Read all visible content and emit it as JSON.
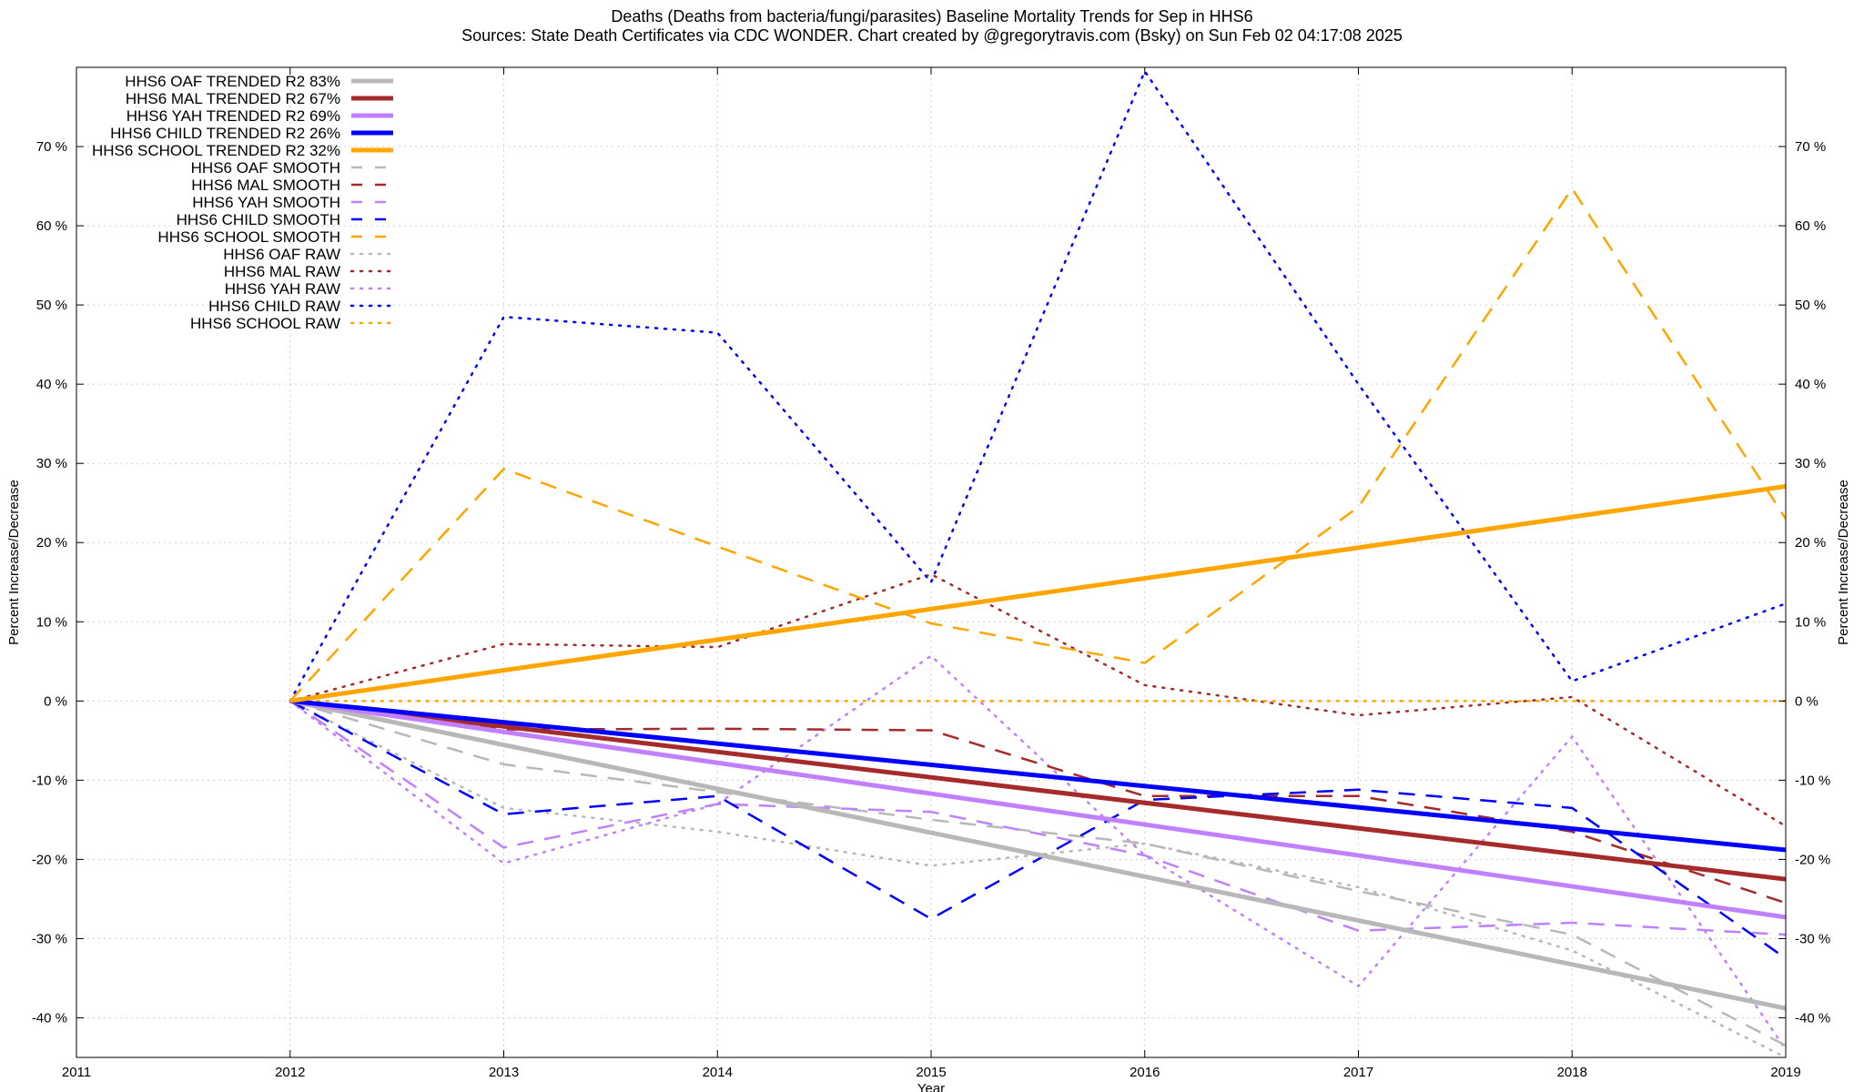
{
  "title_line1": "Deaths (Deaths from bacteria/fungi/parasites)  Baseline Mortality Trends for Sep in HHS6",
  "title_line2": "Sources: State Death Certificates via CDC WONDER.               Chart created by @gregorytravis.com (Bsky) on Sun Feb 02 04:17:08 2025",
  "chart_data": {
    "type": "line",
    "xlabel": "Year",
    "ylabel": "Percent Increase/Decrease",
    "y2label": "Percent Increase/Decrease",
    "xlim": [
      2011,
      2019
    ],
    "ylim": [
      -45,
      80
    ],
    "x_ticks": [
      2011,
      2012,
      2013,
      2014,
      2015,
      2016,
      2017,
      2018,
      2019
    ],
    "y_ticks": [
      -40,
      -30,
      -20,
      -10,
      0,
      10,
      20,
      30,
      40,
      50,
      60,
      70
    ],
    "y_tick_suffix": " %",
    "grid": true,
    "legend_position": "top-left",
    "series": [
      {
        "name": "HHS6 OAF TRENDED R2  83%",
        "style": "solid",
        "color": "#b8b8b8",
        "x": [
          2012,
          2019
        ],
        "values": [
          0,
          -38.8
        ]
      },
      {
        "name": "HHS6 MAL TRENDED R2  67%",
        "style": "solid",
        "color": "#a52a2a",
        "x": [
          2012,
          2019
        ],
        "values": [
          0,
          -22.5
        ]
      },
      {
        "name": "HHS6 YAH TRENDED R2  69%",
        "style": "solid",
        "color": "#c080ff",
        "x": [
          2012,
          2019
        ],
        "values": [
          0,
          -27.3
        ]
      },
      {
        "name": "HHS6 CHILD TRENDED R2  26%",
        "style": "solid",
        "color": "#0000ff",
        "x": [
          2012,
          2019
        ],
        "values": [
          0,
          -18.8
        ]
      },
      {
        "name": "HHS6 SCHOOL TRENDED R2  32%",
        "style": "solid",
        "color": "#ffa500",
        "x": [
          2012,
          2019
        ],
        "values": [
          0,
          27.1
        ]
      },
      {
        "name": "HHS6 OAF SMOOTH",
        "style": "dashed",
        "color": "#b8b8b8",
        "x": [
          2012,
          2013,
          2014,
          2015,
          2016,
          2017,
          2018,
          2019
        ],
        "values": [
          0,
          -8.0,
          -11.5,
          -15.0,
          -18.0,
          -24.0,
          -29.5,
          -43.5
        ]
      },
      {
        "name": "HHS6 MAL SMOOTH",
        "style": "dashed",
        "color": "#a52a2a",
        "x": [
          2012,
          2013,
          2014,
          2015,
          2016,
          2017,
          2018,
          2019
        ],
        "values": [
          0,
          -3.6,
          -3.5,
          -3.7,
          -12.0,
          -12.0,
          -16.5,
          -25.5
        ]
      },
      {
        "name": "HHS6 YAH SMOOTH",
        "style": "dashed",
        "color": "#c080ff",
        "x": [
          2012,
          2013,
          2014,
          2015,
          2016,
          2017,
          2018,
          2019
        ],
        "values": [
          0,
          -18.5,
          -13.0,
          -14.0,
          -19.5,
          -29.0,
          -28.0,
          -29.5
        ]
      },
      {
        "name": "HHS6 CHILD SMOOTH",
        "style": "dashed",
        "color": "#0000ff",
        "x": [
          2012,
          2013,
          2014,
          2015,
          2016,
          2017,
          2018,
          2019
        ],
        "values": [
          0,
          -14.3,
          -12.0,
          -27.5,
          -12.5,
          -11.2,
          -13.5,
          -32.5
        ]
      },
      {
        "name": "HHS6 SCHOOL SMOOTH",
        "style": "dashed",
        "color": "#ffa500",
        "x": [
          2012,
          2013,
          2014,
          2015,
          2016,
          2017,
          2018,
          2019
        ],
        "values": [
          0,
          29.3,
          19.5,
          9.8,
          4.8,
          24.5,
          64.7,
          23.0
        ]
      },
      {
        "name": "HHS6 OAF RAW",
        "style": "dotted",
        "color": "#b8b8b8",
        "x": [
          2012,
          2013,
          2014,
          2015,
          2016,
          2017,
          2018,
          2019
        ],
        "values": [
          0,
          -13.5,
          -16.5,
          -20.8,
          -18.0,
          -23.5,
          -31.5,
          -45.0
        ]
      },
      {
        "name": "HHS6 MAL RAW",
        "style": "dotted",
        "color": "#a52a2a",
        "x": [
          2012,
          2013,
          2014,
          2015,
          2016,
          2017,
          2018,
          2019
        ],
        "values": [
          0,
          7.2,
          6.8,
          16.0,
          2.0,
          -1.8,
          0.5,
          -15.8
        ]
      },
      {
        "name": "HHS6 YAH RAW",
        "style": "dotted",
        "color": "#c080ff",
        "x": [
          2012,
          2013,
          2014,
          2015,
          2016,
          2017,
          2018,
          2019
        ],
        "values": [
          0,
          -20.5,
          -13.0,
          5.7,
          -19.5,
          -36.0,
          -4.5,
          -44.0
        ]
      },
      {
        "name": "HHS6 CHILD RAW",
        "style": "dotted",
        "color": "#0000ff",
        "x": [
          2012,
          2013,
          2014,
          2015,
          2016,
          2017,
          2018,
          2019
        ],
        "values": [
          0,
          48.5,
          46.5,
          15.0,
          79.5,
          40.0,
          2.5,
          12.3
        ]
      },
      {
        "name": "HHS6 SCHOOL RAW",
        "style": "dotted",
        "color": "#ffa500",
        "x": [
          2012,
          2013,
          2014,
          2015,
          2016,
          2017,
          2018,
          2019
        ],
        "values": [
          0,
          0,
          0,
          0,
          0,
          0,
          0,
          0
        ]
      }
    ]
  }
}
